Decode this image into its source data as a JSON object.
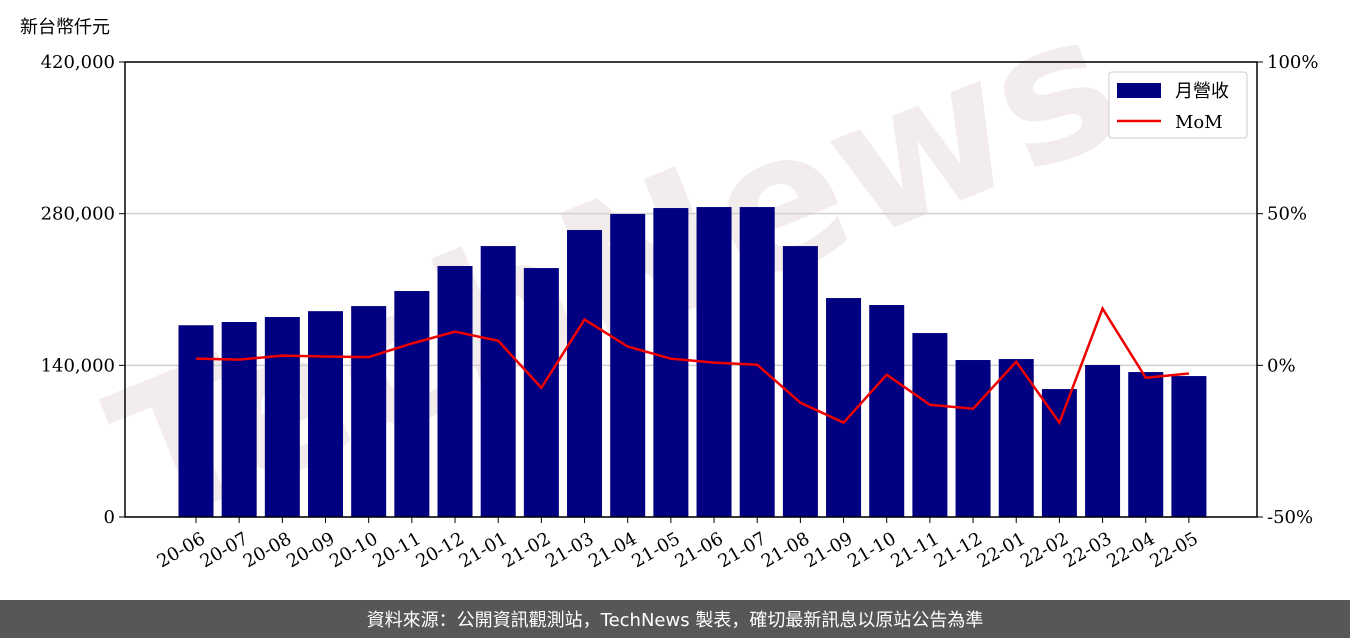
{
  "chart_data": {
    "type": "bar_line",
    "y_label": "新台幣仟元",
    "watermark": "TechNews",
    "footer": "資料來源：公開資訊觀測站，TechNews 製表，確切最新訊息以原站公告為準",
    "categories": [
      "20-06",
      "20-07",
      "20-08",
      "20-09",
      "20-10",
      "20-11",
      "20-12",
      "21-01",
      "21-02",
      "21-03",
      "21-04",
      "21-05",
      "21-06",
      "21-07",
      "21-08",
      "21-09",
      "21-10",
      "21-11",
      "21-12",
      "22-01",
      "22-02",
      "22-03",
      "22-04",
      "22-05"
    ],
    "series": [
      {
        "name": "月營收",
        "color": "#000080",
        "type": "bar",
        "values": [
          177000,
          180000,
          184600,
          190000,
          194700,
          208600,
          231700,
          250100,
          229800,
          264900,
          279700,
          285200,
          286100,
          286100,
          250100,
          202100,
          195700,
          169800,
          144900,
          145800,
          118100,
          140300,
          133800,
          130100
        ]
      },
      {
        "name": "MoM",
        "color": "#ee0000",
        "type": "line",
        "axis": "y2",
        "values": [
          2.2,
          1.9,
          3.2,
          2.9,
          2.7,
          7.2,
          11.1,
          8.1,
          -7.4,
          15.1,
          6.2,
          2.2,
          0.9,
          0.2,
          -12.3,
          -18.9,
          -3.1,
          -13.0,
          -14.3,
          1.2,
          -18.9,
          18.7,
          -4.1,
          -2.7
        ]
      }
    ],
    "ylim": [
      0,
      420000
    ],
    "yticks": [
      0,
      {
        "value": 140000,
        "label": "140,000"
      },
      {
        "value": 280000,
        "label": "280,000"
      },
      {
        "value": 420000,
        "label": "420,000"
      }
    ],
    "y2lim": [
      -50,
      100
    ],
    "y2ticks": [
      {
        "value": -50,
        "label": "-50%"
      },
      {
        "value": 0,
        "label": "0%"
      },
      {
        "value": 50,
        "label": "50%"
      },
      {
        "value": 100,
        "label": "100%"
      }
    ],
    "grid": true,
    "legend": "upper-right"
  }
}
